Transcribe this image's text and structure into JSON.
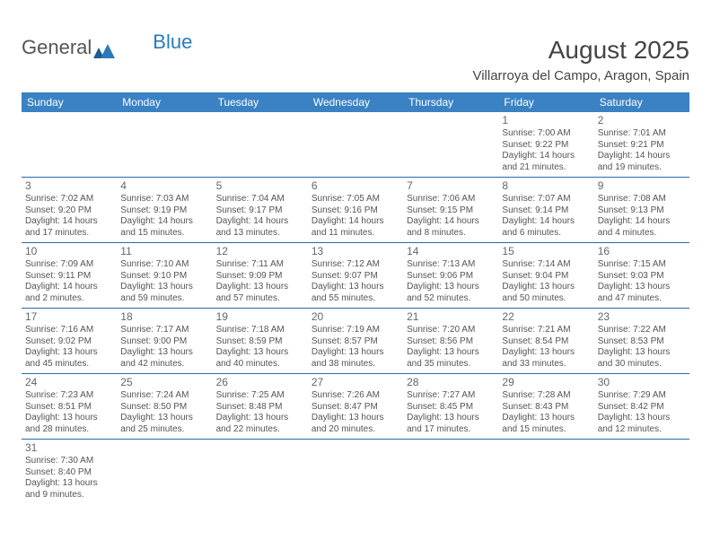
{
  "logo": {
    "text1": "General",
    "text2": "Blue"
  },
  "title": "August 2025",
  "location": "Villarroya del Campo, Aragon, Spain",
  "colors": {
    "header_bg": "#3b82c4",
    "header_fg": "#ffffff",
    "border": "#2a6aa8",
    "text": "#555555",
    "title_color": "#444444"
  },
  "day_headers": [
    "Sunday",
    "Monday",
    "Tuesday",
    "Wednesday",
    "Thursday",
    "Friday",
    "Saturday"
  ],
  "weeks": [
    [
      null,
      null,
      null,
      null,
      null,
      {
        "n": "1",
        "sr": "Sunrise: 7:00 AM",
        "ss": "Sunset: 9:22 PM",
        "d1": "Daylight: 14 hours",
        "d2": "and 21 minutes."
      },
      {
        "n": "2",
        "sr": "Sunrise: 7:01 AM",
        "ss": "Sunset: 9:21 PM",
        "d1": "Daylight: 14 hours",
        "d2": "and 19 minutes."
      }
    ],
    [
      {
        "n": "3",
        "sr": "Sunrise: 7:02 AM",
        "ss": "Sunset: 9:20 PM",
        "d1": "Daylight: 14 hours",
        "d2": "and 17 minutes."
      },
      {
        "n": "4",
        "sr": "Sunrise: 7:03 AM",
        "ss": "Sunset: 9:19 PM",
        "d1": "Daylight: 14 hours",
        "d2": "and 15 minutes."
      },
      {
        "n": "5",
        "sr": "Sunrise: 7:04 AM",
        "ss": "Sunset: 9:17 PM",
        "d1": "Daylight: 14 hours",
        "d2": "and 13 minutes."
      },
      {
        "n": "6",
        "sr": "Sunrise: 7:05 AM",
        "ss": "Sunset: 9:16 PM",
        "d1": "Daylight: 14 hours",
        "d2": "and 11 minutes."
      },
      {
        "n": "7",
        "sr": "Sunrise: 7:06 AM",
        "ss": "Sunset: 9:15 PM",
        "d1": "Daylight: 14 hours",
        "d2": "and 8 minutes."
      },
      {
        "n": "8",
        "sr": "Sunrise: 7:07 AM",
        "ss": "Sunset: 9:14 PM",
        "d1": "Daylight: 14 hours",
        "d2": "and 6 minutes."
      },
      {
        "n": "9",
        "sr": "Sunrise: 7:08 AM",
        "ss": "Sunset: 9:13 PM",
        "d1": "Daylight: 14 hours",
        "d2": "and 4 minutes."
      }
    ],
    [
      {
        "n": "10",
        "sr": "Sunrise: 7:09 AM",
        "ss": "Sunset: 9:11 PM",
        "d1": "Daylight: 14 hours",
        "d2": "and 2 minutes."
      },
      {
        "n": "11",
        "sr": "Sunrise: 7:10 AM",
        "ss": "Sunset: 9:10 PM",
        "d1": "Daylight: 13 hours",
        "d2": "and 59 minutes."
      },
      {
        "n": "12",
        "sr": "Sunrise: 7:11 AM",
        "ss": "Sunset: 9:09 PM",
        "d1": "Daylight: 13 hours",
        "d2": "and 57 minutes."
      },
      {
        "n": "13",
        "sr": "Sunrise: 7:12 AM",
        "ss": "Sunset: 9:07 PM",
        "d1": "Daylight: 13 hours",
        "d2": "and 55 minutes."
      },
      {
        "n": "14",
        "sr": "Sunrise: 7:13 AM",
        "ss": "Sunset: 9:06 PM",
        "d1": "Daylight: 13 hours",
        "d2": "and 52 minutes."
      },
      {
        "n": "15",
        "sr": "Sunrise: 7:14 AM",
        "ss": "Sunset: 9:04 PM",
        "d1": "Daylight: 13 hours",
        "d2": "and 50 minutes."
      },
      {
        "n": "16",
        "sr": "Sunrise: 7:15 AM",
        "ss": "Sunset: 9:03 PM",
        "d1": "Daylight: 13 hours",
        "d2": "and 47 minutes."
      }
    ],
    [
      {
        "n": "17",
        "sr": "Sunrise: 7:16 AM",
        "ss": "Sunset: 9:02 PM",
        "d1": "Daylight: 13 hours",
        "d2": "and 45 minutes."
      },
      {
        "n": "18",
        "sr": "Sunrise: 7:17 AM",
        "ss": "Sunset: 9:00 PM",
        "d1": "Daylight: 13 hours",
        "d2": "and 42 minutes."
      },
      {
        "n": "19",
        "sr": "Sunrise: 7:18 AM",
        "ss": "Sunset: 8:59 PM",
        "d1": "Daylight: 13 hours",
        "d2": "and 40 minutes."
      },
      {
        "n": "20",
        "sr": "Sunrise: 7:19 AM",
        "ss": "Sunset: 8:57 PM",
        "d1": "Daylight: 13 hours",
        "d2": "and 38 minutes."
      },
      {
        "n": "21",
        "sr": "Sunrise: 7:20 AM",
        "ss": "Sunset: 8:56 PM",
        "d1": "Daylight: 13 hours",
        "d2": "and 35 minutes."
      },
      {
        "n": "22",
        "sr": "Sunrise: 7:21 AM",
        "ss": "Sunset: 8:54 PM",
        "d1": "Daylight: 13 hours",
        "d2": "and 33 minutes."
      },
      {
        "n": "23",
        "sr": "Sunrise: 7:22 AM",
        "ss": "Sunset: 8:53 PM",
        "d1": "Daylight: 13 hours",
        "d2": "and 30 minutes."
      }
    ],
    [
      {
        "n": "24",
        "sr": "Sunrise: 7:23 AM",
        "ss": "Sunset: 8:51 PM",
        "d1": "Daylight: 13 hours",
        "d2": "and 28 minutes."
      },
      {
        "n": "25",
        "sr": "Sunrise: 7:24 AM",
        "ss": "Sunset: 8:50 PM",
        "d1": "Daylight: 13 hours",
        "d2": "and 25 minutes."
      },
      {
        "n": "26",
        "sr": "Sunrise: 7:25 AM",
        "ss": "Sunset: 8:48 PM",
        "d1": "Daylight: 13 hours",
        "d2": "and 22 minutes."
      },
      {
        "n": "27",
        "sr": "Sunrise: 7:26 AM",
        "ss": "Sunset: 8:47 PM",
        "d1": "Daylight: 13 hours",
        "d2": "and 20 minutes."
      },
      {
        "n": "28",
        "sr": "Sunrise: 7:27 AM",
        "ss": "Sunset: 8:45 PM",
        "d1": "Daylight: 13 hours",
        "d2": "and 17 minutes."
      },
      {
        "n": "29",
        "sr": "Sunrise: 7:28 AM",
        "ss": "Sunset: 8:43 PM",
        "d1": "Daylight: 13 hours",
        "d2": "and 15 minutes."
      },
      {
        "n": "30",
        "sr": "Sunrise: 7:29 AM",
        "ss": "Sunset: 8:42 PM",
        "d1": "Daylight: 13 hours",
        "d2": "and 12 minutes."
      }
    ],
    [
      {
        "n": "31",
        "sr": "Sunrise: 7:30 AM",
        "ss": "Sunset: 8:40 PM",
        "d1": "Daylight: 13 hours",
        "d2": "and 9 minutes."
      },
      null,
      null,
      null,
      null,
      null,
      null
    ]
  ]
}
